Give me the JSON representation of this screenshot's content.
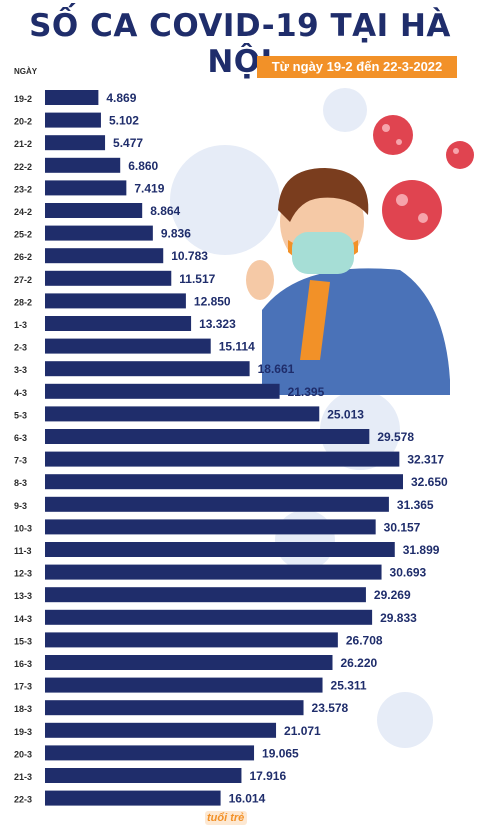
{
  "title": "SỐ CA COVID-19 TẠI HÀ NỘI",
  "subtitle": "Từ ngày 19-2 đến 22-3-2022",
  "logo_text": "tuổi trẻ",
  "colors": {
    "bar": "#1f2d6b",
    "accent": "#f29128",
    "virus": "#e04450",
    "decoration": "#dfe6f3"
  },
  "chart_data": {
    "type": "bar",
    "orientation": "horizontal",
    "ylabel": "NGÀY",
    "categories": [
      "19-2",
      "20-2",
      "21-2",
      "22-2",
      "23-2",
      "24-2",
      "25-2",
      "26-2",
      "27-2",
      "28-2",
      "1-3",
      "2-3",
      "3-3",
      "4-3",
      "5-3",
      "6-3",
      "7-3",
      "8-3",
      "9-3",
      "10-3",
      "11-3",
      "12-3",
      "13-3",
      "14-3",
      "15-3",
      "16-3",
      "17-3",
      "18-3",
      "19-3",
      "20-3",
      "21-3",
      "22-3"
    ],
    "values": [
      4869,
      5102,
      5477,
      6860,
      7419,
      8864,
      9836,
      10783,
      11517,
      12850,
      13323,
      15114,
      18661,
      21395,
      25013,
      29578,
      32317,
      32650,
      31365,
      30157,
      31899,
      30693,
      29269,
      29833,
      26708,
      26220,
      25311,
      23578,
      21071,
      19065,
      17916,
      16014
    ],
    "value_labels": [
      "4.869",
      "5.102",
      "5.477",
      "6.860",
      "7.419",
      "8.864",
      "9.836",
      "10.783",
      "11.517",
      "12.850",
      "13.323",
      "15.114",
      "18.661",
      "21.395",
      "25.013",
      "29.578",
      "32.317",
      "32.650",
      "31.365",
      "30.157",
      "31.899",
      "30.693",
      "29.269",
      "29.833",
      "26.708",
      "26.220",
      "25.311",
      "23.578",
      "21.071",
      "19.065",
      "17.916",
      "16.014"
    ],
    "xlim": [
      0,
      32650
    ],
    "grid": false,
    "legend": "none"
  }
}
